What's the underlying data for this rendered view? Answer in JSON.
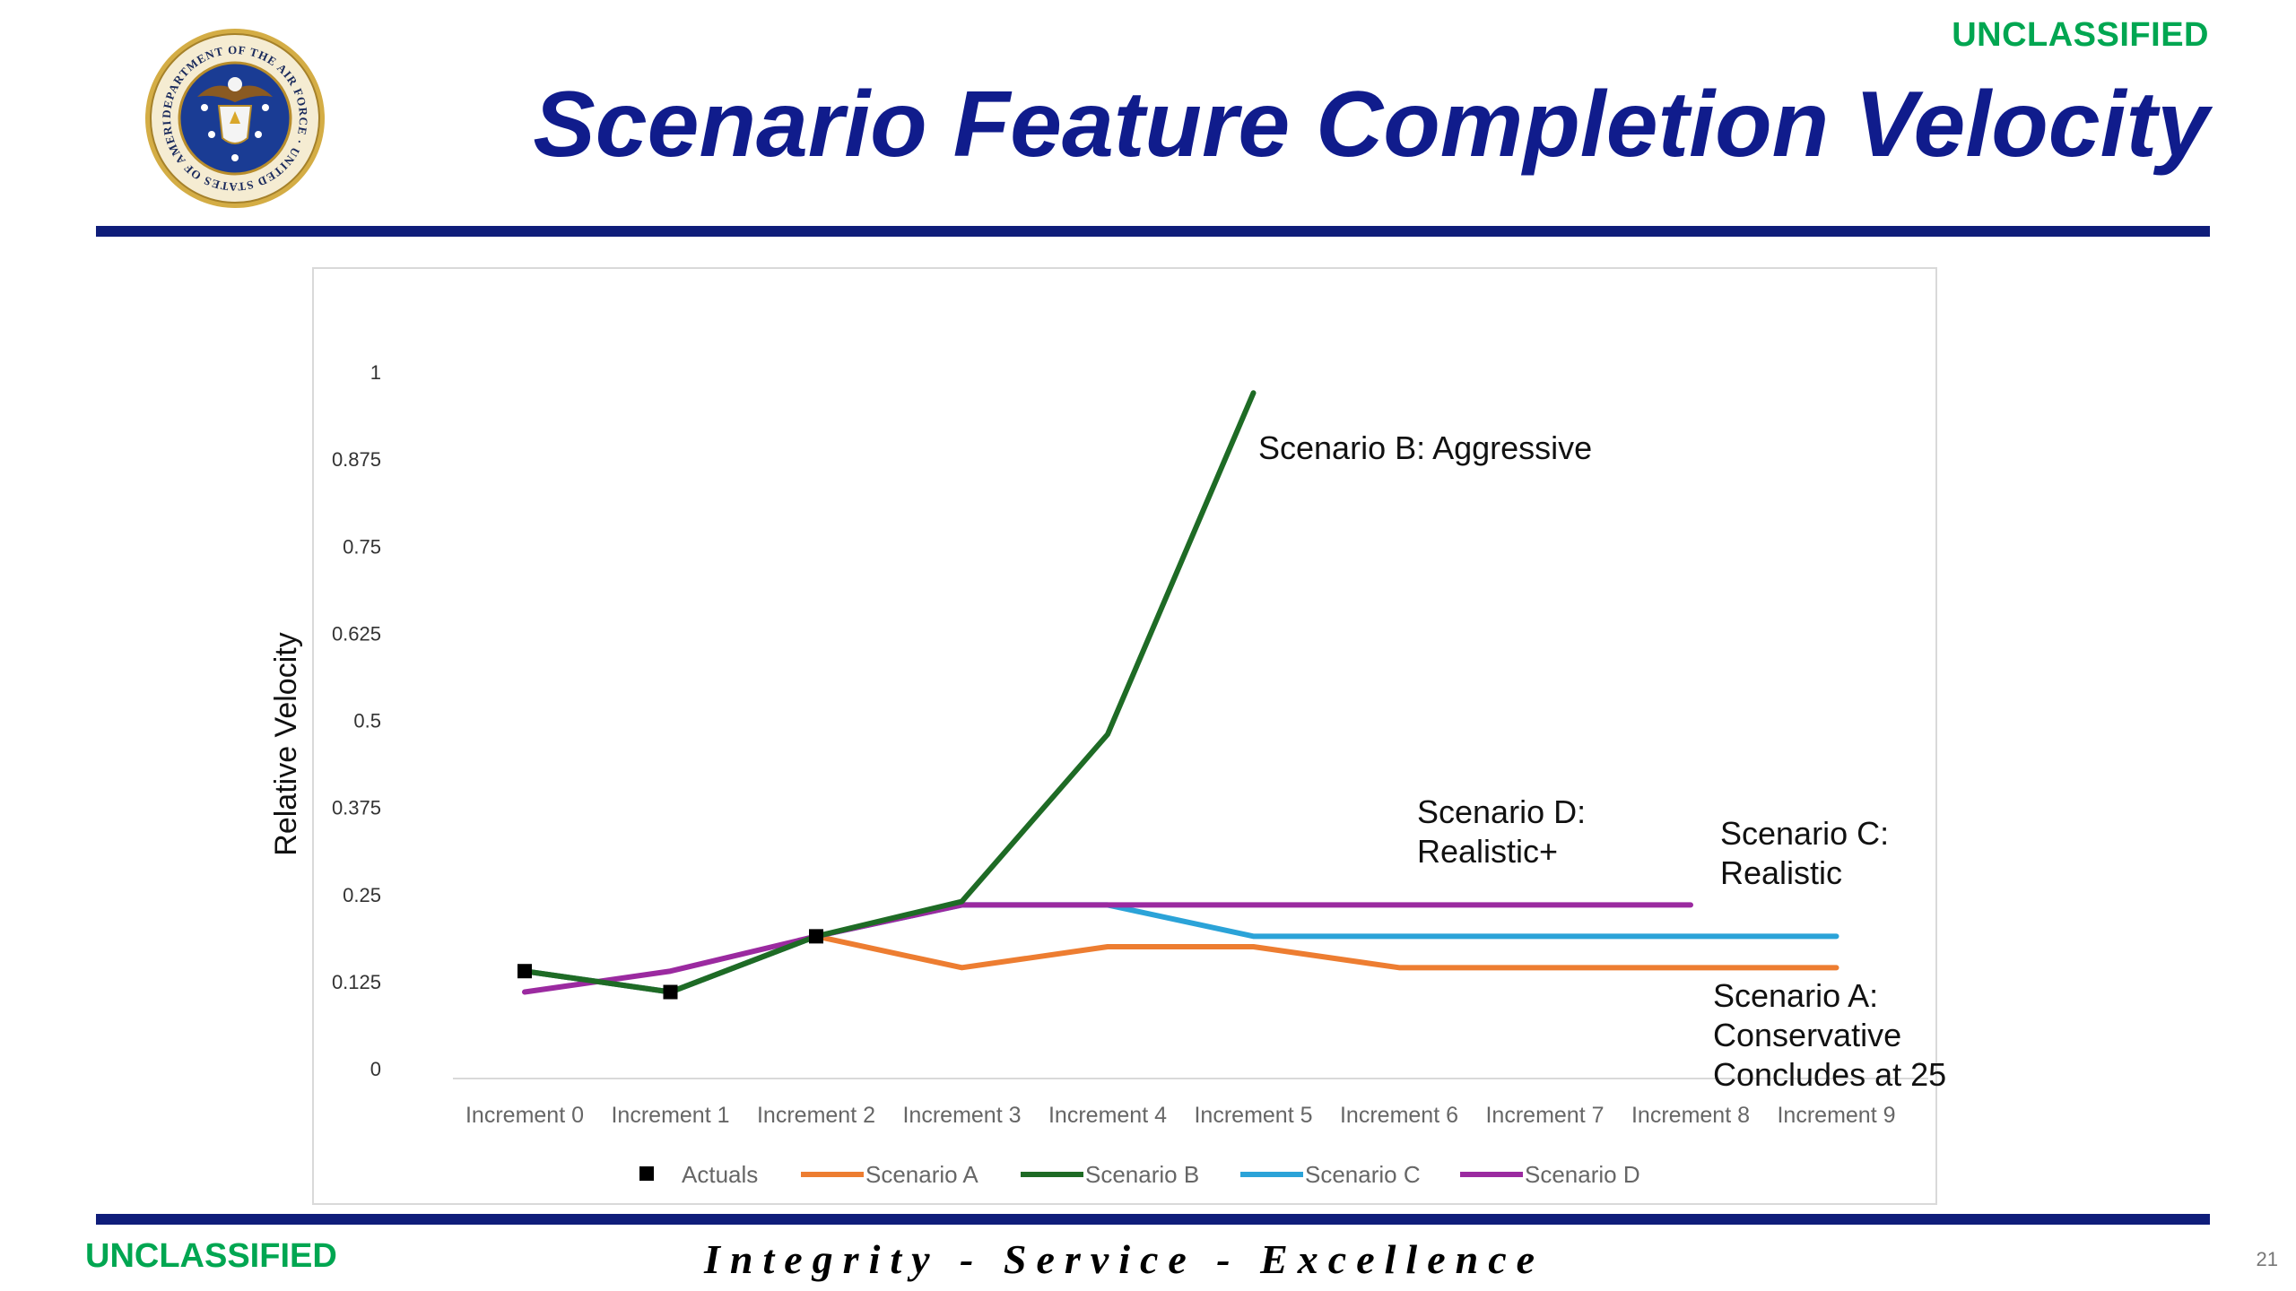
{
  "header": {
    "classification": "UNCLASSIFIED",
    "title": "Scenario Feature Completion Velocity"
  },
  "footer": {
    "classification": "UNCLASSIFIED",
    "motto": "Integrity - Service - Excellence",
    "page_number": "21"
  },
  "seal": {
    "icon": "department-of-the-air-force-seal-icon",
    "text": "DEPARTMENT OF THE AIR FORCE · UNITED STATES OF AMERICA · MCMXLVII"
  },
  "colors": {
    "title": "#101c8c",
    "rule": "#0f1d7a",
    "classification": "#00a651",
    "actuals": "#000000",
    "scenario_a": "#ed7d31",
    "scenario_b": "#1e6b25",
    "scenario_c": "#2ba3d8",
    "scenario_d": "#9b2aa0"
  },
  "chart_data": {
    "type": "line",
    "ylabel": "Relative Velocity",
    "xlabel": "",
    "categories": [
      "Increment 0",
      "Increment 1",
      "Increment 2",
      "Increment 3",
      "Increment 4",
      "Increment 5",
      "Increment 6",
      "Increment 7",
      "Increment 8",
      "Increment 9"
    ],
    "y_ticks": [
      {
        "label": "0",
        "value": 0
      },
      {
        "label": "0.125",
        "value": 0.125
      },
      {
        "label": "0.25",
        "value": 0.25
      },
      {
        "label": "0.375",
        "value": 0.375
      },
      {
        "label": "0.5",
        "value": 0.5
      },
      {
        "label": "0.625",
        "value": 0.625
      },
      {
        "label": "0.75",
        "value": 0.75
      },
      {
        "label": "0.875",
        "value": 0.875
      },
      {
        "label": "1",
        "value": 1
      }
    ],
    "ylim": [
      0,
      1
    ],
    "grid": false,
    "legend_position": "bottom",
    "series": [
      {
        "key": "actuals",
        "name": "Actuals",
        "color": "#000000",
        "marker": "square",
        "line": false,
        "values": [
          0.14,
          0.11,
          0.19,
          null,
          null,
          null,
          null,
          null,
          null,
          null
        ]
      },
      {
        "key": "scenario_a",
        "name": "Scenario A",
        "color": "#ed7d31",
        "values": [
          0.14,
          0.11,
          0.19,
          0.145,
          0.175,
          0.175,
          0.145,
          0.145,
          0.145,
          0.145
        ]
      },
      {
        "key": "scenario_b",
        "name": "Scenario B",
        "color": "#1e6b25",
        "values": [
          0.14,
          0.11,
          0.19,
          0.24,
          0.48,
          0.97,
          null,
          null,
          null,
          null
        ]
      },
      {
        "key": "scenario_c",
        "name": "Scenario C",
        "color": "#2ba3d8",
        "values": [
          0.14,
          0.11,
          0.19,
          0.235,
          0.235,
          0.19,
          0.19,
          0.19,
          0.19,
          0.19
        ]
      },
      {
        "key": "scenario_d",
        "name": "Scenario D",
        "color": "#9b2aa0",
        "values": [
          0.11,
          0.14,
          0.19,
          0.235,
          0.235,
          0.235,
          0.235,
          0.235,
          0.235,
          null
        ]
      }
    ],
    "annotations": [
      {
        "name": "annotation-scenario-b",
        "lines": [
          "Scenario B: Aggressive"
        ]
      },
      {
        "name": "annotation-scenario-d",
        "lines": [
          "Scenario D:",
          "Realistic+"
        ]
      },
      {
        "name": "annotation-scenario-c",
        "lines": [
          "Scenario C:",
          "Realistic"
        ]
      },
      {
        "name": "annotation-scenario-a",
        "lines": [
          "Scenario A:",
          "Conservative",
          "Concludes at 25"
        ]
      }
    ]
  }
}
